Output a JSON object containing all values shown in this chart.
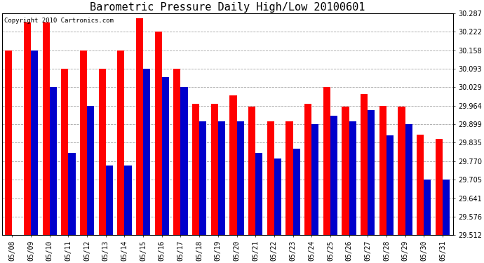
{
  "title": "Barometric Pressure Daily High/Low 20100601",
  "copyright": "Copyright 2010 Cartronics.com",
  "dates": [
    "05/08",
    "05/09",
    "05/10",
    "05/11",
    "05/12",
    "05/13",
    "05/14",
    "05/15",
    "05/16",
    "05/17",
    "05/18",
    "05/19",
    "05/20",
    "05/21",
    "05/22",
    "05/23",
    "05/24",
    "05/25",
    "05/26",
    "05/27",
    "05/28",
    "05/29",
    "05/30",
    "05/31"
  ],
  "highs": [
    30.158,
    30.255,
    30.255,
    30.093,
    30.158,
    30.093,
    30.158,
    30.27,
    30.222,
    30.093,
    29.97,
    29.97,
    30.0,
    29.96,
    29.91,
    29.91,
    29.97,
    30.029,
    29.96,
    30.005,
    29.964,
    29.96,
    29.864,
    29.848
  ],
  "lows": [
    29.512,
    30.158,
    30.029,
    29.8,
    29.964,
    29.755,
    29.755,
    30.093,
    30.064,
    30.029,
    29.91,
    29.91,
    29.91,
    29.8,
    29.78,
    29.815,
    29.899,
    29.93,
    29.91,
    29.948,
    29.86,
    29.899,
    29.705,
    29.705
  ],
  "high_color": "#FF0000",
  "low_color": "#0000CC",
  "bg_color": "#FFFFFF",
  "plot_bg_color": "#FFFFFF",
  "grid_color": "#999999",
  "ymin": 29.512,
  "ymax": 30.287,
  "yticks": [
    29.512,
    29.576,
    29.641,
    29.705,
    29.77,
    29.835,
    29.899,
    29.964,
    30.029,
    30.093,
    30.158,
    30.222,
    30.287
  ],
  "bar_width": 0.38,
  "title_fontsize": 11,
  "tick_fontsize": 7,
  "copyright_fontsize": 6.5,
  "fig_width": 6.9,
  "fig_height": 3.75,
  "dpi": 100
}
